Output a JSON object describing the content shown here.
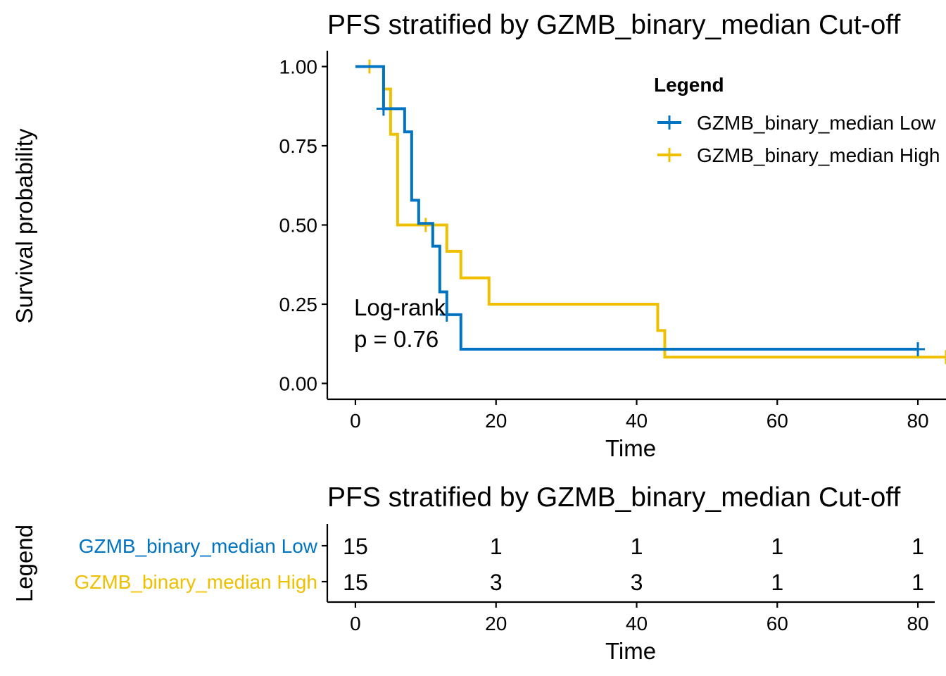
{
  "colors": {
    "low": "#0073C2",
    "high": "#EFC000"
  },
  "chart_data": [
    {
      "type": "line",
      "subtype": "kaplan-meier",
      "title": "PFS stratified by GZMB_binary_median Cut-off",
      "xlabel": "Time",
      "ylabel": "Survival probability",
      "xlim": [
        -4,
        84
      ],
      "ylim": [
        -0.05,
        1.05
      ],
      "x_ticks": [
        0,
        20,
        40,
        60,
        80
      ],
      "x_tick_labels": [
        "0",
        "20",
        "40",
        "60",
        "80"
      ],
      "y_ticks": [
        0,
        0.25,
        0.5,
        0.75,
        1
      ],
      "y_tick_labels": [
        "0.00",
        "0.25",
        "0.50",
        "0.75",
        "1.00"
      ],
      "grid": false,
      "legend": {
        "title": "Legend",
        "placement": "top-right",
        "entries": [
          "GZMB_binary_median Low",
          "GZMB_binary_median High"
        ]
      },
      "annotation": {
        "lines": [
          "Log-rank",
          "p = 0.76"
        ],
        "x": 0,
        "y": 0.2
      },
      "series": [
        {
          "name": "GZMB_binary_median Low",
          "color": "#0073C2",
          "steps": [
            [
              0,
              1.0
            ],
            [
              4,
              0.867
            ],
            [
              7,
              0.794
            ],
            [
              8,
              0.578
            ],
            [
              9,
              0.505
            ],
            [
              11,
              0.433
            ],
            [
              12,
              0.289
            ],
            [
              13,
              0.217
            ],
            [
              15,
              0.108
            ],
            [
              80,
              0.108
            ]
          ],
          "censor": [
            [
              4,
              0.867
            ],
            [
              13,
              0.217
            ],
            [
              80,
              0.108
            ]
          ]
        },
        {
          "name": "GZMB_binary_median High",
          "color": "#EFC000",
          "steps": [
            [
              0,
              1.0
            ],
            [
              4,
              0.929
            ],
            [
              5,
              0.786
            ],
            [
              6,
              0.5
            ],
            [
              13,
              0.417
            ],
            [
              15,
              0.333
            ],
            [
              19,
              0.25
            ],
            [
              43,
              0.167
            ],
            [
              44,
              0.083
            ],
            [
              84,
              0.083
            ]
          ],
          "censor": [
            [
              2,
              1.0
            ],
            [
              10,
              0.5
            ],
            [
              84,
              0.083
            ]
          ]
        }
      ]
    },
    {
      "type": "table",
      "subtype": "risk-table",
      "title": "PFS stratified by GZMB_binary_median Cut-off",
      "xlabel": "Time",
      "ylabel": "Legend",
      "xlim": [
        -4,
        84
      ],
      "x_ticks": [
        0,
        20,
        40,
        60,
        80
      ],
      "x_tick_labels": [
        "0",
        "20",
        "40",
        "60",
        "80"
      ],
      "x": [
        0,
        20,
        40,
        60,
        80
      ],
      "rows": [
        {
          "name": "GZMB_binary_median Low",
          "color": "#0073C2",
          "values": [
            "15",
            "1",
            "1",
            "1",
            "1"
          ]
        },
        {
          "name": "GZMB_binary_median High",
          "color": "#EFC000",
          "values": [
            "15",
            "3",
            "3",
            "1",
            "1"
          ]
        }
      ]
    }
  ]
}
